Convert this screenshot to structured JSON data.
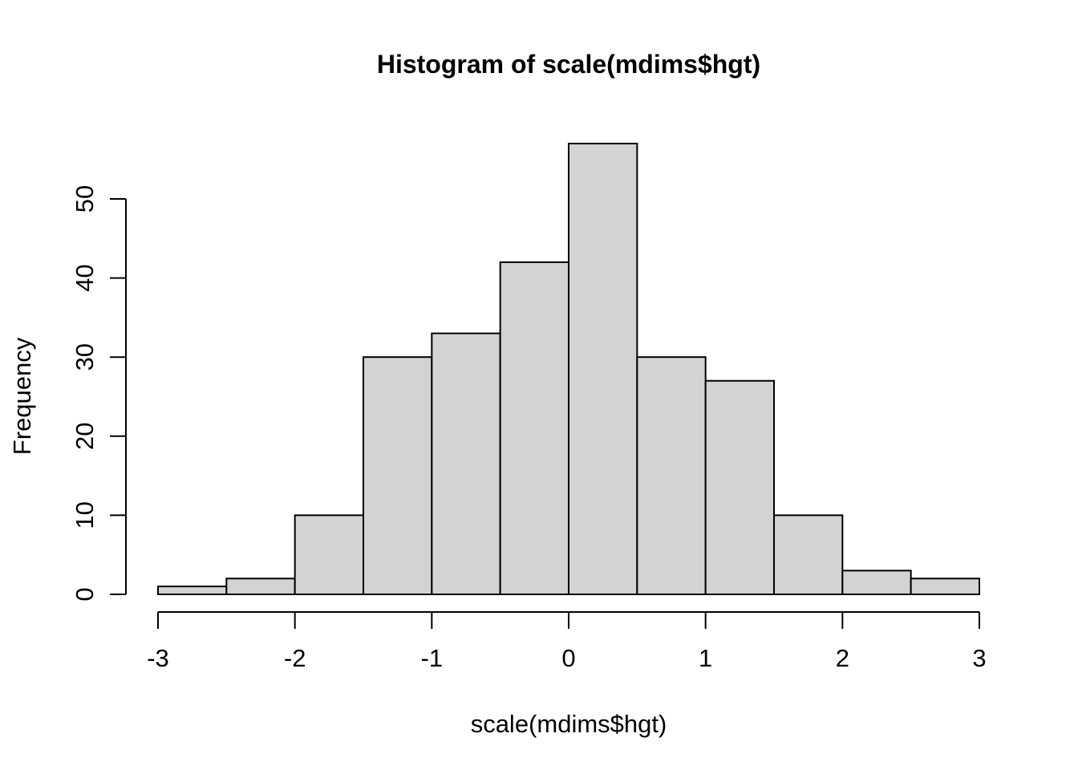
{
  "chart_data": {
    "type": "bar",
    "subtype": "histogram",
    "title": "Histogram of scale(mdims$hgt)",
    "xlabel": "scale(mdims$hgt)",
    "ylabel": "Frequency",
    "bins": [
      {
        "start": -3.0,
        "end": -2.5,
        "count": 1
      },
      {
        "start": -2.5,
        "end": -2.0,
        "count": 2
      },
      {
        "start": -2.0,
        "end": -1.5,
        "count": 10
      },
      {
        "start": -1.5,
        "end": -1.0,
        "count": 30
      },
      {
        "start": -1.0,
        "end": -0.5,
        "count": 33
      },
      {
        "start": -0.5,
        "end": 0.0,
        "count": 42
      },
      {
        "start": 0.0,
        "end": 0.5,
        "count": 57
      },
      {
        "start": 0.5,
        "end": 1.0,
        "count": 30
      },
      {
        "start": 1.0,
        "end": 1.5,
        "count": 27
      },
      {
        "start": 1.5,
        "end": 2.0,
        "count": 10
      },
      {
        "start": 2.0,
        "end": 2.5,
        "count": 3
      },
      {
        "start": 2.5,
        "end": 3.0,
        "count": 2
      }
    ],
    "x_ticks": [
      "-3",
      "-2",
      "-1",
      "0",
      "1",
      "2",
      "3"
    ],
    "x_tick_values": [
      -3,
      -2,
      -1,
      0,
      1,
      2,
      3
    ],
    "y_ticks": [
      "0",
      "10",
      "20",
      "30",
      "40",
      "50"
    ],
    "y_tick_values": [
      0,
      10,
      20,
      30,
      40,
      50
    ],
    "xlim": [
      -3,
      3
    ],
    "ylim": [
      0,
      50
    ],
    "grid": "off",
    "legend": "none",
    "colors": {
      "bar_fill": "#D3D3D3",
      "bar_stroke": "#000000",
      "axis": "#000000",
      "text": "#000000",
      "background": "#FFFFFF"
    }
  }
}
